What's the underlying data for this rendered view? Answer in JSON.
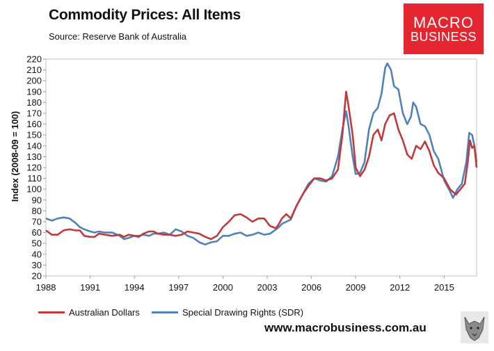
{
  "header": {
    "title": "Commodity Prices: All Items",
    "source": "Source:  Reserve Bank of Australia"
  },
  "logo": {
    "line1": "MACRO",
    "line2": "BUSINESS",
    "color": "#e3262f"
  },
  "footer": {
    "website": "www.macrobusiness.com.au",
    "wolf_icon": "wolf-icon"
  },
  "chart_data": {
    "type": "line",
    "title": "Commodity Prices: All Items",
    "xlabel": "",
    "ylabel": "Index (2008-09 = 100)",
    "xlim": [
      1988,
      2017.2
    ],
    "ylim": [
      20,
      220
    ],
    "xticks": [
      "1988",
      "1991",
      "1994",
      "1997",
      "2000",
      "2003",
      "2006",
      "2009",
      "2012",
      "2015"
    ],
    "yticks": [
      "20",
      "30",
      "40",
      "50",
      "60",
      "70",
      "80",
      "90",
      "100",
      "110",
      "120",
      "130",
      "140",
      "150",
      "160",
      "170",
      "180",
      "190",
      "200",
      "210",
      "220"
    ],
    "grid": false,
    "legend_position": "bottom",
    "series": [
      {
        "name": "Australian Dollars",
        "color": "#c0393b",
        "points": [
          [
            1988.0,
            62
          ],
          [
            1988.4,
            58
          ],
          [
            1988.8,
            58
          ],
          [
            1989.2,
            62
          ],
          [
            1989.6,
            63
          ],
          [
            1990.0,
            62
          ],
          [
            1990.3,
            62
          ],
          [
            1990.6,
            57
          ],
          [
            1991.0,
            56
          ],
          [
            1991.3,
            56
          ],
          [
            1991.6,
            59
          ],
          [
            1992.0,
            58
          ],
          [
            1992.5,
            57
          ],
          [
            1993.0,
            58
          ],
          [
            1993.3,
            56
          ],
          [
            1993.6,
            58
          ],
          [
            1994.0,
            57
          ],
          [
            1994.3,
            56
          ],
          [
            1994.6,
            59
          ],
          [
            1995.0,
            61
          ],
          [
            1995.3,
            61
          ],
          [
            1995.6,
            59
          ],
          [
            1996.0,
            58
          ],
          [
            1996.4,
            58
          ],
          [
            1996.8,
            57
          ],
          [
            1997.2,
            58
          ],
          [
            1997.6,
            61
          ],
          [
            1998.0,
            60
          ],
          [
            1998.4,
            59
          ],
          [
            1998.8,
            56
          ],
          [
            1999.2,
            54
          ],
          [
            1999.6,
            57
          ],
          [
            2000.0,
            65
          ],
          [
            2000.4,
            70
          ],
          [
            2000.8,
            76
          ],
          [
            2001.2,
            77
          ],
          [
            2001.6,
            74
          ],
          [
            2002.0,
            70
          ],
          [
            2002.4,
            73
          ],
          [
            2002.8,
            73
          ],
          [
            2003.2,
            66
          ],
          [
            2003.6,
            64
          ],
          [
            2003.8,
            68
          ],
          [
            2004.0,
            73
          ],
          [
            2004.3,
            77
          ],
          [
            2004.6,
            73
          ],
          [
            2005.0,
            85
          ],
          [
            2005.4,
            95
          ],
          [
            2005.8,
            103
          ],
          [
            2006.2,
            110
          ],
          [
            2006.6,
            110
          ],
          [
            2007.0,
            108
          ],
          [
            2007.4,
            110
          ],
          [
            2007.8,
            118
          ],
          [
            2008.1,
            150
          ],
          [
            2008.35,
            190
          ],
          [
            2008.5,
            178
          ],
          [
            2008.8,
            150
          ],
          [
            2009.0,
            120
          ],
          [
            2009.3,
            112
          ],
          [
            2009.6,
            118
          ],
          [
            2009.9,
            130
          ],
          [
            2010.2,
            150
          ],
          [
            2010.5,
            155
          ],
          [
            2010.75,
            145
          ],
          [
            2011.0,
            160
          ],
          [
            2011.3,
            168
          ],
          [
            2011.6,
            170
          ],
          [
            2011.9,
            155
          ],
          [
            2012.2,
            145
          ],
          [
            2012.5,
            132
          ],
          [
            2012.8,
            128
          ],
          [
            2013.1,
            140
          ],
          [
            2013.4,
            137
          ],
          [
            2013.7,
            144
          ],
          [
            2014.0,
            135
          ],
          [
            2014.3,
            122
          ],
          [
            2014.6,
            115
          ],
          [
            2015.0,
            110
          ],
          [
            2015.4,
            100
          ],
          [
            2015.8,
            95
          ],
          [
            2016.1,
            100
          ],
          [
            2016.4,
            105
          ],
          [
            2016.6,
            125
          ],
          [
            2016.75,
            145
          ],
          [
            2016.9,
            138
          ],
          [
            2017.05,
            140
          ],
          [
            2017.2,
            120
          ]
        ]
      },
      {
        "name": "Special Drawing Rights (SDR)",
        "color": "#4f81bd",
        "points": [
          [
            1988.0,
            73
          ],
          [
            1988.4,
            71
          ],
          [
            1988.8,
            73
          ],
          [
            1989.2,
            74
          ],
          [
            1989.6,
            73
          ],
          [
            1990.0,
            69
          ],
          [
            1990.3,
            65
          ],
          [
            1990.6,
            63
          ],
          [
            1991.0,
            61
          ],
          [
            1991.3,
            60
          ],
          [
            1991.6,
            61
          ],
          [
            1992.0,
            60
          ],
          [
            1992.5,
            60
          ],
          [
            1993.0,
            57
          ],
          [
            1993.3,
            54
          ],
          [
            1993.6,
            55
          ],
          [
            1994.0,
            57
          ],
          [
            1994.3,
            57
          ],
          [
            1994.6,
            58
          ],
          [
            1995.0,
            57
          ],
          [
            1995.3,
            59
          ],
          [
            1995.6,
            59
          ],
          [
            1996.0,
            60
          ],
          [
            1996.4,
            58
          ],
          [
            1996.8,
            63
          ],
          [
            1997.2,
            61
          ],
          [
            1997.6,
            57
          ],
          [
            1998.0,
            55
          ],
          [
            1998.4,
            51
          ],
          [
            1998.8,
            49
          ],
          [
            1999.2,
            51
          ],
          [
            1999.6,
            52
          ],
          [
            2000.0,
            57
          ],
          [
            2000.4,
            57
          ],
          [
            2000.8,
            59
          ],
          [
            2001.2,
            60
          ],
          [
            2001.6,
            57
          ],
          [
            2002.0,
            58
          ],
          [
            2002.4,
            60
          ],
          [
            2002.8,
            58
          ],
          [
            2003.2,
            59
          ],
          [
            2003.6,
            63
          ],
          [
            2003.8,
            65
          ],
          [
            2004.0,
            68
          ],
          [
            2004.3,
            70
          ],
          [
            2004.6,
            72
          ],
          [
            2005.0,
            85
          ],
          [
            2005.4,
            95
          ],
          [
            2005.8,
            105
          ],
          [
            2006.2,
            110
          ],
          [
            2006.6,
            108
          ],
          [
            2007.0,
            107
          ],
          [
            2007.4,
            112
          ],
          [
            2007.8,
            130
          ],
          [
            2008.1,
            155
          ],
          [
            2008.35,
            172
          ],
          [
            2008.5,
            160
          ],
          [
            2008.8,
            130
          ],
          [
            2009.0,
            114
          ],
          [
            2009.3,
            115
          ],
          [
            2009.6,
            125
          ],
          [
            2009.9,
            155
          ],
          [
            2010.2,
            170
          ],
          [
            2010.5,
            175
          ],
          [
            2010.75,
            188
          ],
          [
            2011.0,
            212
          ],
          [
            2011.15,
            216
          ],
          [
            2011.4,
            210
          ],
          [
            2011.6,
            195
          ],
          [
            2011.9,
            192
          ],
          [
            2012.2,
            170
          ],
          [
            2012.5,
            160
          ],
          [
            2012.75,
            167
          ],
          [
            2012.9,
            180
          ],
          [
            2013.1,
            176
          ],
          [
            2013.4,
            160
          ],
          [
            2013.7,
            158
          ],
          [
            2014.0,
            150
          ],
          [
            2014.3,
            135
          ],
          [
            2014.6,
            128
          ],
          [
            2015.0,
            108
          ],
          [
            2015.4,
            98
          ],
          [
            2015.6,
            92
          ],
          [
            2015.9,
            100
          ],
          [
            2016.2,
            105
          ],
          [
            2016.5,
            125
          ],
          [
            2016.7,
            152
          ],
          [
            2016.9,
            150
          ],
          [
            2017.05,
            140
          ],
          [
            2017.2,
            125
          ]
        ]
      }
    ]
  }
}
